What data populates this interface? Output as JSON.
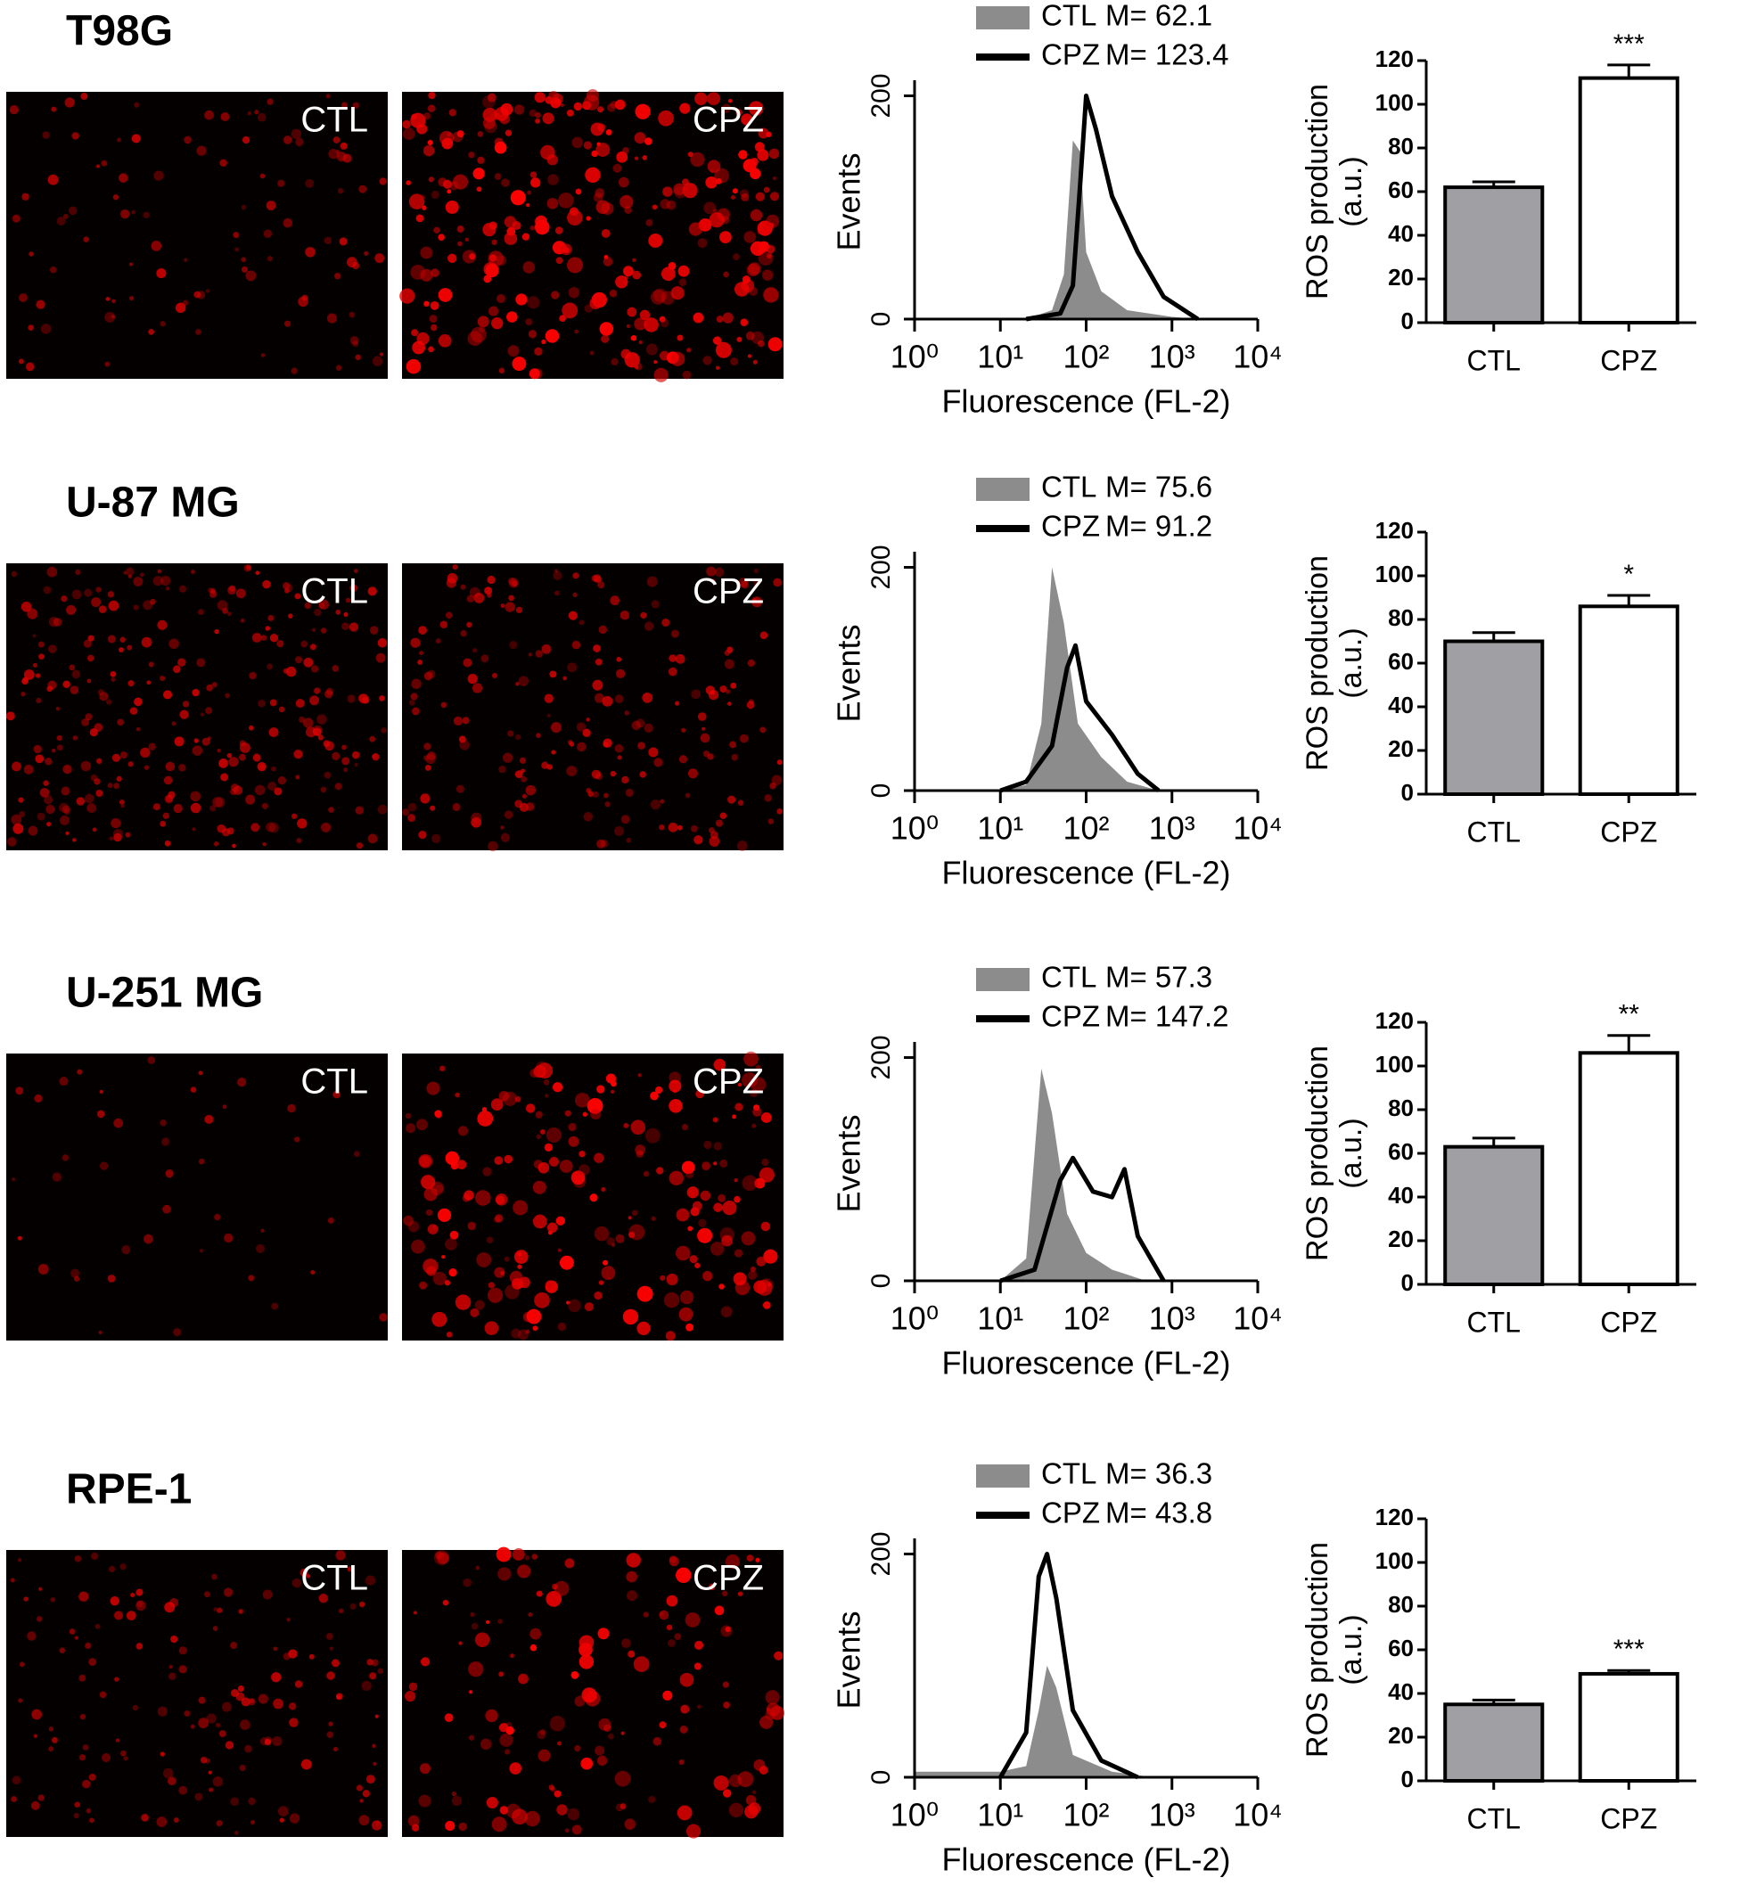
{
  "rows": [
    {
      "title": "T98G",
      "images": [
        "CTL",
        "CPZ"
      ]
    },
    {
      "title": "U-87 MG",
      "images": [
        "CTL",
        "CPZ"
      ]
    },
    {
      "title": "U-251 MG",
      "images": [
        "CTL",
        "CPZ"
      ]
    },
    {
      "title": "RPE-1",
      "images": [
        "CTL",
        "CPZ"
      ]
    }
  ],
  "chart_data": [
    {
      "type": "histogram",
      "xlabel": "Fluorescence (FL-2)",
      "ylabel": "Events",
      "xscale": "log",
      "xlim": [
        1,
        10000
      ],
      "xticks": [
        {
          "value": 1,
          "label": "10⁰"
        },
        {
          "value": 10,
          "label": "10¹"
        },
        {
          "value": 100,
          "label": "10²"
        },
        {
          "value": 1000,
          "label": "10³"
        },
        {
          "value": 10000,
          "label": "10⁴"
        }
      ],
      "ylim": [
        0,
        210
      ],
      "yticks": [
        0,
        200
      ],
      "series": [
        {
          "name": "CTL",
          "mean_label": "M= 62.1",
          "style": "area",
          "color": "#8c8c8c",
          "x": [
            20,
            40,
            55,
            70,
            85,
            100,
            150,
            300,
            1000,
            2000
          ],
          "values": [
            0,
            8,
            40,
            160,
            150,
            60,
            25,
            8,
            2,
            0
          ]
        },
        {
          "name": "CPZ",
          "mean_label": "M= 123.4",
          "style": "line",
          "color": "#000000",
          "x": [
            20,
            50,
            70,
            85,
            100,
            130,
            200,
            400,
            800,
            2000
          ],
          "values": [
            0,
            5,
            30,
            120,
            200,
            170,
            110,
            60,
            20,
            0
          ]
        }
      ]
    },
    {
      "type": "bar",
      "ylabel": [
        "ROS production",
        "(a.u.)"
      ],
      "categories": [
        "CTL",
        "CPZ"
      ],
      "values": [
        62,
        112
      ],
      "errors": [
        2.5,
        6
      ],
      "annotations": [
        null,
        "***"
      ],
      "colors": [
        "#a0a0a4",
        "#ffffff"
      ],
      "ylim": [
        0,
        120
      ],
      "yticks": [
        0,
        20,
        40,
        60,
        80,
        100,
        120
      ]
    },
    {
      "type": "histogram",
      "xlabel": "Fluorescence (FL-2)",
      "ylabel": "Events",
      "xscale": "log",
      "xlim": [
        1,
        10000
      ],
      "xticks": [
        {
          "value": 1,
          "label": "10⁰"
        },
        {
          "value": 10,
          "label": "10¹"
        },
        {
          "value": 100,
          "label": "10²"
        },
        {
          "value": 1000,
          "label": "10³"
        },
        {
          "value": 10000,
          "label": "10⁴"
        }
      ],
      "ylim": [
        0,
        210
      ],
      "yticks": [
        0,
        200
      ],
      "series": [
        {
          "name": "CTL",
          "mean_label": "M= 75.6",
          "style": "area",
          "color": "#8c8c8c",
          "x": [
            10,
            20,
            30,
            40,
            55,
            80,
            150,
            300,
            700
          ],
          "values": [
            0,
            5,
            60,
            200,
            150,
            60,
            30,
            8,
            0
          ]
        },
        {
          "name": "CPZ",
          "mean_label": "M= 91.2",
          "style": "line",
          "color": "#000000",
          "x": [
            10,
            20,
            40,
            60,
            75,
            100,
            200,
            400,
            700
          ],
          "values": [
            0,
            8,
            40,
            110,
            130,
            80,
            50,
            15,
            0
          ]
        }
      ]
    },
    {
      "type": "bar",
      "ylabel": [
        "ROS production",
        "(a.u.)"
      ],
      "categories": [
        "CTL",
        "CPZ"
      ],
      "values": [
        70,
        86
      ],
      "errors": [
        4,
        5
      ],
      "annotations": [
        null,
        "*"
      ],
      "colors": [
        "#a0a0a4",
        "#ffffff"
      ],
      "ylim": [
        0,
        120
      ],
      "yticks": [
        0,
        20,
        40,
        60,
        80,
        100,
        120
      ]
    },
    {
      "type": "histogram",
      "xlabel": "Fluorescence (FL-2)",
      "ylabel": "Events",
      "xscale": "log",
      "xlim": [
        1,
        10000
      ],
      "xticks": [
        {
          "value": 1,
          "label": "10⁰"
        },
        {
          "value": 10,
          "label": "10¹"
        },
        {
          "value": 100,
          "label": "10²"
        },
        {
          "value": 1000,
          "label": "10³"
        },
        {
          "value": 10000,
          "label": "10⁴"
        }
      ],
      "ylim": [
        0,
        210
      ],
      "yticks": [
        0,
        200
      ],
      "series": [
        {
          "name": "CTL",
          "mean_label": "M= 57.3",
          "style": "area",
          "color": "#8c8c8c",
          "x": [
            10,
            20,
            30,
            40,
            60,
            100,
            200,
            500
          ],
          "values": [
            0,
            20,
            190,
            150,
            60,
            25,
            10,
            0
          ]
        },
        {
          "name": "CPZ",
          "mean_label": "M= 147.2",
          "style": "line",
          "color": "#000000",
          "x": [
            10,
            25,
            50,
            70,
            120,
            200,
            280,
            400,
            800
          ],
          "values": [
            0,
            10,
            90,
            110,
            80,
            75,
            100,
            40,
            0
          ]
        }
      ]
    },
    {
      "type": "bar",
      "ylabel": [
        "ROS production",
        "(a.u.)"
      ],
      "categories": [
        "CTL",
        "CPZ"
      ],
      "values": [
        63,
        106
      ],
      "errors": [
        4,
        8
      ],
      "annotations": [
        null,
        "**"
      ],
      "colors": [
        "#a0a0a4",
        "#ffffff"
      ],
      "ylim": [
        0,
        120
      ],
      "yticks": [
        0,
        20,
        40,
        60,
        80,
        100,
        120
      ]
    },
    {
      "type": "histogram",
      "xlabel": "Fluorescence (FL-2)",
      "ylabel": "Events",
      "xscale": "log",
      "xlim": [
        1,
        10000
      ],
      "xticks": [
        {
          "value": 1,
          "label": "10⁰"
        },
        {
          "value": 10,
          "label": "10¹"
        },
        {
          "value": 100,
          "label": "10²"
        },
        {
          "value": 1000,
          "label": "10³"
        },
        {
          "value": 10000,
          "label": "10⁴"
        }
      ],
      "ylim": [
        0,
        210
      ],
      "yticks": [
        0,
        200
      ],
      "series": [
        {
          "name": "CTL",
          "mean_label": "M= 36.3",
          "style": "area",
          "color": "#8c8c8c",
          "x": [
            1,
            10,
            20,
            28,
            35,
            45,
            70,
            200,
            600
          ],
          "values": [
            5,
            5,
            10,
            60,
            100,
            80,
            20,
            5,
            0
          ]
        },
        {
          "name": "CPZ",
          "mean_label": "M= 43.8",
          "style": "line",
          "color": "#000000",
          "x": [
            10,
            20,
            28,
            35,
            45,
            70,
            150,
            400
          ],
          "values": [
            0,
            40,
            180,
            200,
            160,
            60,
            15,
            0
          ]
        }
      ]
    },
    {
      "type": "bar",
      "ylabel": [
        "ROS production",
        "(a.u.)"
      ],
      "categories": [
        "CTL",
        "CPZ"
      ],
      "values": [
        35,
        49
      ],
      "errors": [
        2,
        1.5
      ],
      "annotations": [
        null,
        "***"
      ],
      "colors": [
        "#a0a0a4",
        "#ffffff"
      ],
      "ylim": [
        0,
        120
      ],
      "yticks": [
        0,
        20,
        40,
        60,
        80,
        100,
        120
      ]
    }
  ]
}
